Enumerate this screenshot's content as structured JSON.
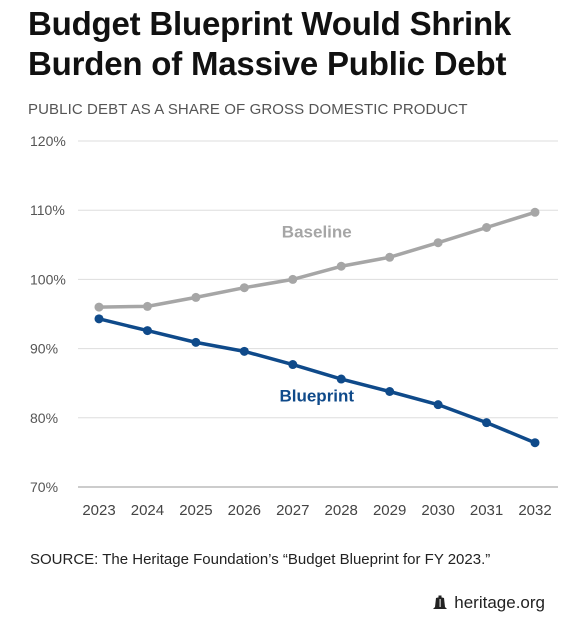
{
  "header": {
    "title_line1": "Budget Blueprint Would Shrink",
    "title_line2": "Burden of Massive Public Debt"
  },
  "chart_data": {
    "type": "line",
    "subtitle": "PUBLIC DEBT AS A SHARE OF GROSS DOMESTIC PRODUCT",
    "x": [
      "2023",
      "2024",
      "2025",
      "2026",
      "2027",
      "2028",
      "2029",
      "2030",
      "2031",
      "2032"
    ],
    "series": [
      {
        "name": "Baseline",
        "color": "#a6a6a6",
        "values": [
          96.0,
          96.1,
          97.4,
          98.8,
          100.0,
          101.9,
          103.2,
          105.3,
          107.5,
          109.7
        ]
      },
      {
        "name": "Blueprint",
        "color": "#0f4a8a",
        "values": [
          94.3,
          92.6,
          90.9,
          89.6,
          87.7,
          85.6,
          83.8,
          81.9,
          79.3,
          76.4
        ]
      }
    ],
    "y_ticks": [
      "70%",
      "80%",
      "90%",
      "100%",
      "110%",
      "120%"
    ],
    "ylim": [
      70,
      120
    ],
    "xlabel": "",
    "ylabel": "",
    "grid": true
  },
  "footer": {
    "source": "SOURCE: The Heritage Foundation’s “Budget Blueprint for FY 2023.”",
    "brand": "heritage.org",
    "brand_icon": "liberty-bell-icon"
  }
}
